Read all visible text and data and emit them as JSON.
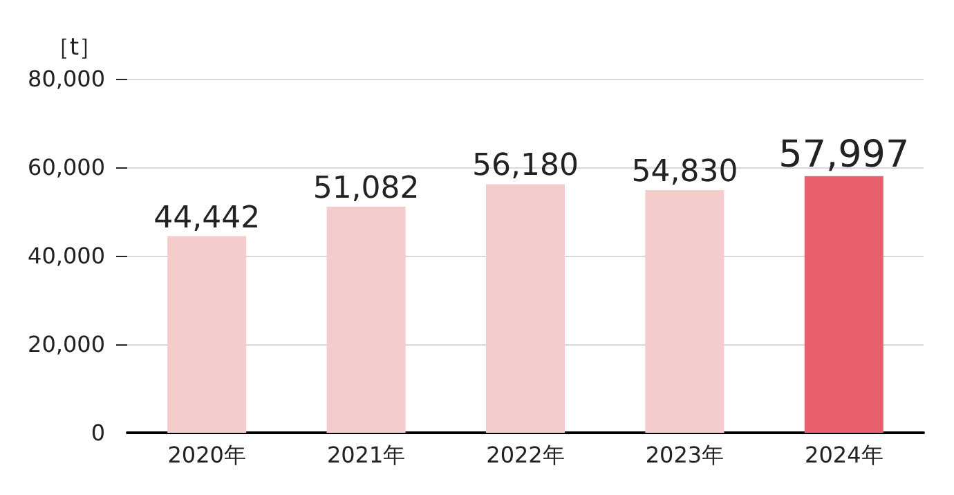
{
  "chart_data": {
    "type": "bar",
    "ylabel": "［t］",
    "categories": [
      "2020年",
      "2021年",
      "2022年",
      "2023年",
      "2024年"
    ],
    "values": [
      44442,
      51082,
      56180,
      54830,
      57997
    ],
    "value_labels": [
      "44,442",
      "51,082",
      "56,180",
      "54,830",
      "57,997"
    ],
    "colors": [
      "#f4cccc",
      "#f4cccc",
      "#f4cccc",
      "#f4cccc",
      "#e8606e"
    ],
    "ylim": [
      0,
      80000
    ],
    "yticks": [
      0,
      {
        "value": 20000,
        "label": "20,000"
      },
      {
        "value": 40000,
        "label": "40,000"
      },
      {
        "value": 60000,
        "label": "60,000"
      },
      {
        "value": 80000,
        "label": "80,000"
      }
    ],
    "grid": "y"
  }
}
